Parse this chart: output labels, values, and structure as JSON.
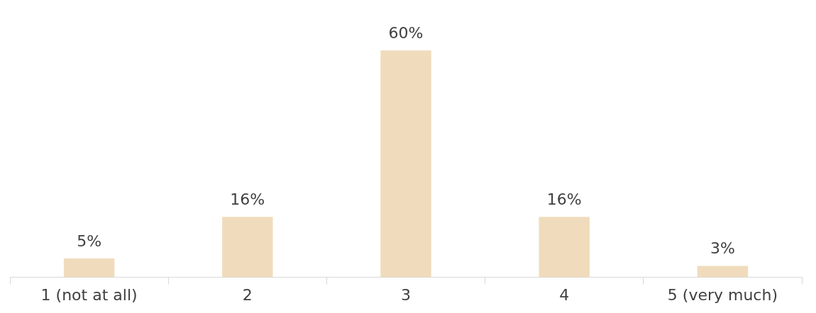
{
  "chart_data": {
    "type": "bar",
    "categories": [
      "1 (not at all)",
      "2",
      "3",
      "4",
      "5 (very much)"
    ],
    "values": [
      5,
      16,
      60,
      16,
      3
    ],
    "color": "#f0dcbc",
    "value_labels": [
      "5%",
      "16%",
      "60%",
      "16%",
      "3%"
    ],
    "grid": false,
    "legend": false
  }
}
